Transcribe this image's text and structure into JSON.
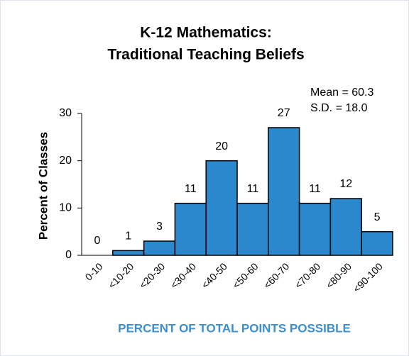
{
  "chart_data": {
    "type": "bar",
    "title": [
      "K-12 Mathematics:",
      "Traditional Teaching Beliefs"
    ],
    "annotations": [
      "Mean = 60.3",
      "S.D. = 18.0"
    ],
    "y_label": "Percent of Classes",
    "x_label": "PERCENT OF TOTAL POINTS POSSIBLE",
    "categories": [
      "0-10",
      "<10-20",
      "<20-30",
      "<30-40",
      "<40-50",
      "<50-60",
      "<60-70",
      "<70-80",
      "<80-90",
      "<90-100"
    ],
    "values": [
      0,
      1,
      3,
      11,
      20,
      11,
      27,
      11,
      12,
      5
    ],
    "color": "#2b88cc",
    "ylim": [
      0,
      30
    ],
    "yticks": [
      0,
      10,
      20,
      30
    ],
    "grid": false
  }
}
